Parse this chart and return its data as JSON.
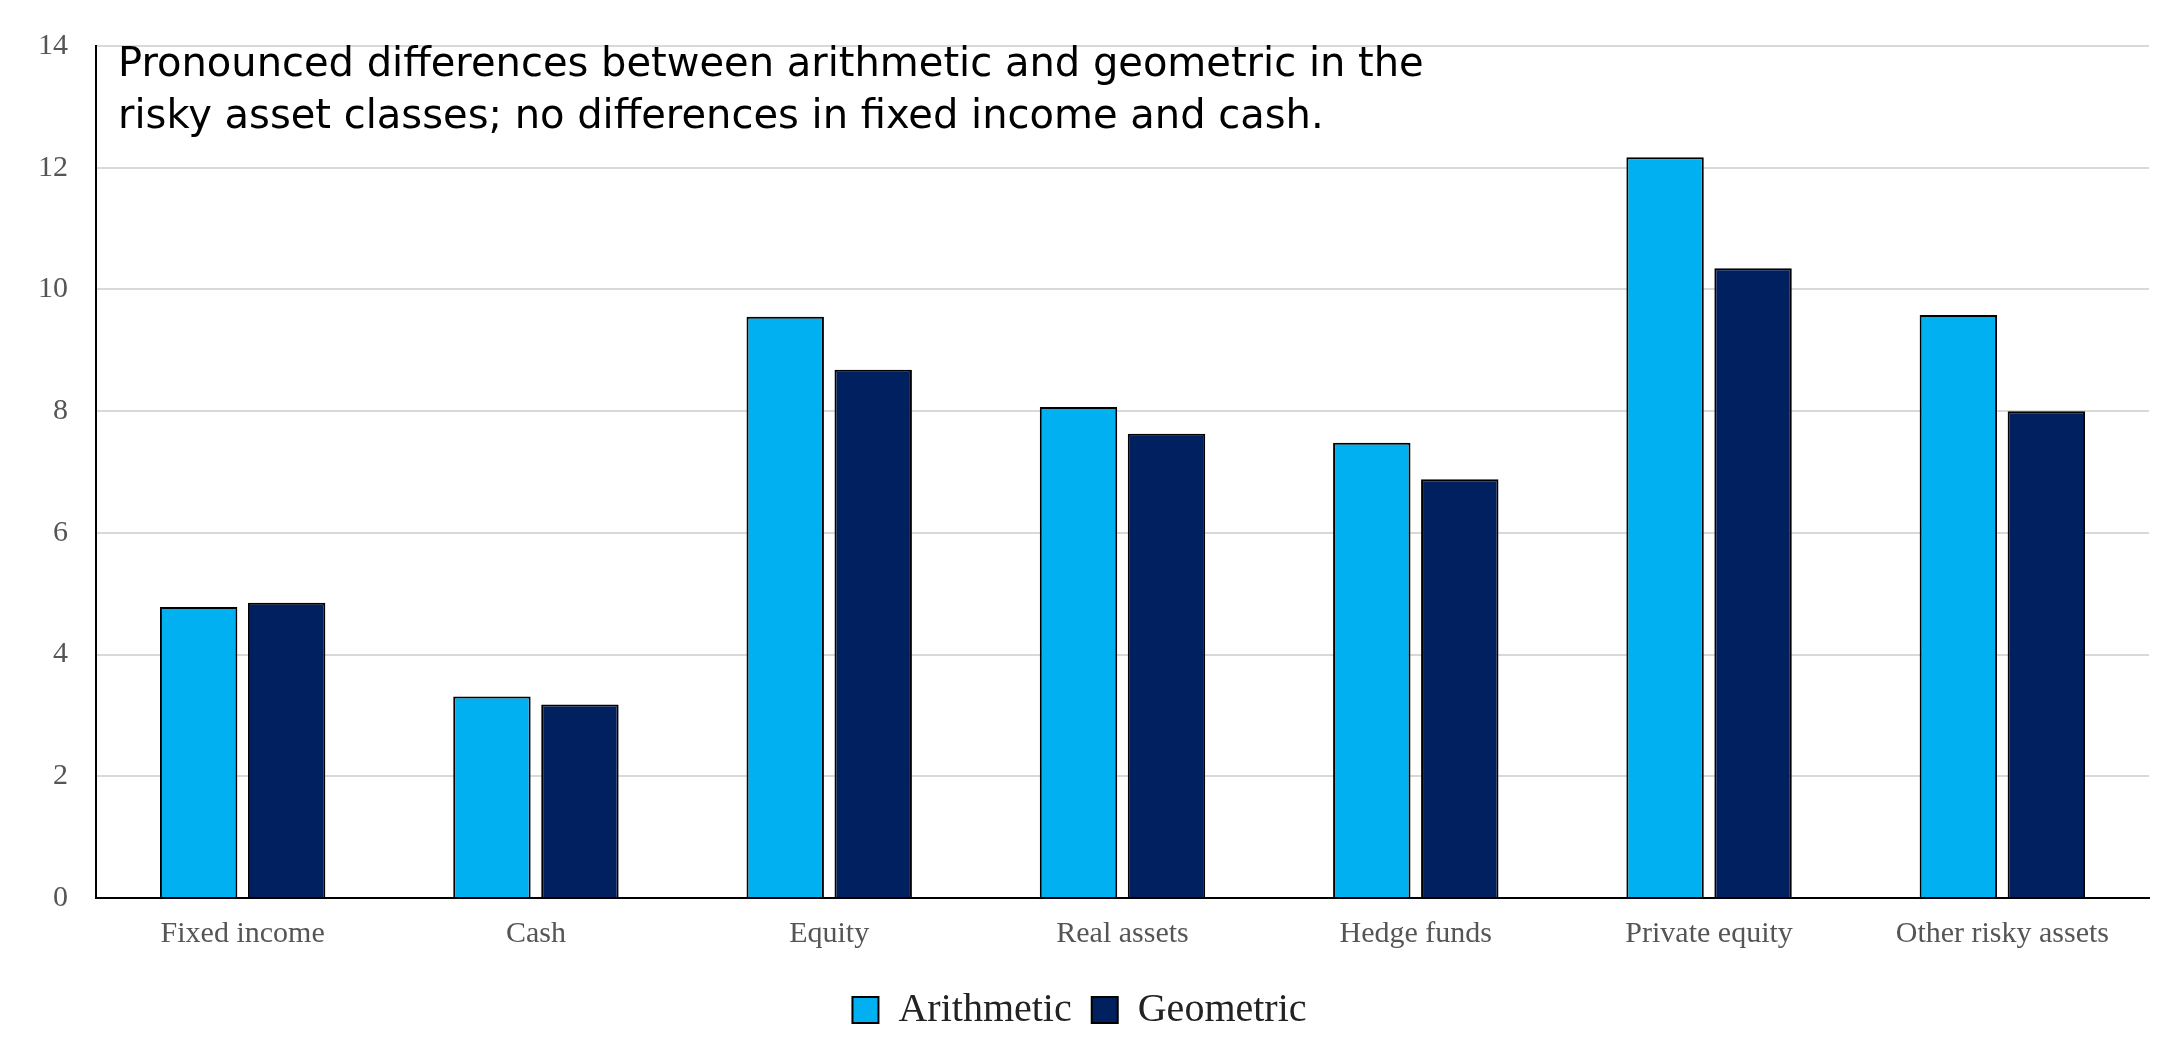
{
  "chart_data": {
    "type": "bar",
    "categories": [
      "Fixed income",
      "Cash",
      "Equity",
      "Real assets",
      "Hedge funds",
      "Private equity",
      "Other risky assets"
    ],
    "series": [
      {
        "name": "Arithmetic",
        "color": "#00b0f0",
        "values": [
          4.78,
          3.31,
          9.55,
          8.07,
          7.48,
          12.17,
          9.58
        ]
      },
      {
        "name": "Geometric",
        "color": "#002060",
        "values": [
          4.85,
          3.18,
          8.68,
          7.63,
          6.88,
          10.35,
          8.0
        ]
      }
    ],
    "ylim": [
      0,
      14
    ],
    "yticks": [
      0,
      2,
      4,
      6,
      8,
      10,
      12,
      14
    ],
    "grid": "y",
    "legend": "bottom",
    "annotations": [
      "Pronounced differences between arithmetic and geometric in the risky asset classes; no differences in fixed income and cash."
    ]
  }
}
